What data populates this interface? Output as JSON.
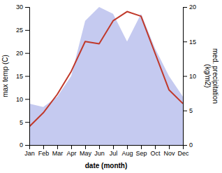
{
  "chart_data": {
    "type": "line",
    "categories": [
      "Jan",
      "Feb",
      "Mar",
      "Apr",
      "May",
      "Jun",
      "Jul",
      "Aug",
      "Sep",
      "Oct",
      "Nov",
      "Dec"
    ],
    "x_label": "date (month)",
    "y_label": "max temp (C)",
    "y2_label": "med. precipitation\n(kg/m2)",
    "ylim": [
      0,
      30
    ],
    "yticks": [
      0,
      5,
      10,
      15,
      20,
      25,
      30
    ],
    "y2lim": [
      0,
      20
    ],
    "y2ticks": [
      0,
      5,
      10,
      15,
      20
    ],
    "series": [
      {
        "type": "area",
        "axis": "y2",
        "color": "#c5caf0",
        "values": [
          6,
          5.5,
          7,
          10,
          18,
          20,
          19,
          15,
          19,
          14,
          10,
          7
        ]
      },
      {
        "type": "line",
        "color": "#c0392b",
        "values": [
          4,
          7,
          11,
          16,
          22.5,
          22,
          27,
          29,
          28,
          20,
          12,
          9
        ]
      }
    ]
  }
}
